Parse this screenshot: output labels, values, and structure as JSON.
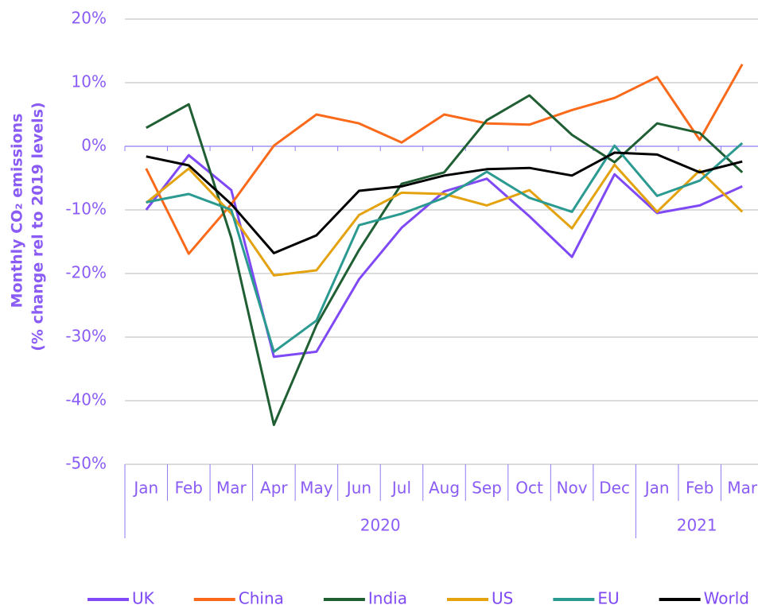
{
  "chart_data": {
    "type": "line",
    "y_label": [
      "Monthly CO₂ emissions",
      "(% change rel to 2019 levels)"
    ],
    "categories": [
      "Jan",
      "Feb",
      "Mar",
      "Apr",
      "May",
      "Jun",
      "Jul",
      "Aug",
      "Sep",
      "Oct",
      "Nov",
      "Dec",
      "Jan",
      "Feb",
      "Mar"
    ],
    "category_groups": [
      "2020",
      "2020",
      "2020",
      "2020",
      "2020",
      "2020",
      "2020",
      "2020",
      "2020",
      "2020",
      "2020",
      "2020",
      "2021",
      "2021",
      "2021"
    ],
    "ylim": [
      -50,
      20
    ],
    "yticks": [
      {
        "value": -50,
        "label": "-50%"
      },
      {
        "value": -40,
        "label": "-40%"
      },
      {
        "value": -30,
        "label": "-30%"
      },
      {
        "value": -20,
        "label": "-20%"
      },
      {
        "value": -10,
        "label": "-10%"
      },
      {
        "value": 0,
        "label": "0%"
      },
      {
        "value": 10,
        "label": "10%"
      },
      {
        "value": 20,
        "label": "20%"
      }
    ],
    "grid": true,
    "legend": "bottom",
    "series": [
      {
        "name": "UK",
        "color": "#7f49f5",
        "values": [
          -10,
          -1.4,
          -6.9,
          -33.1,
          -32.3,
          -20.9,
          -12.8,
          -7.1,
          -5.1,
          -11,
          -17.4,
          -4.4,
          -10.5,
          -9.3,
          -6.3
        ]
      },
      {
        "name": "China",
        "color": "#fa6a1a",
        "values": [
          -3.5,
          -16.9,
          -9.1,
          0.1,
          5,
          3.6,
          0.6,
          5,
          3.6,
          3.4,
          5.7,
          7.6,
          10.9,
          1,
          12.9
        ]
      },
      {
        "name": "India",
        "color": "#1f5f33",
        "values": [
          2.9,
          6.6,
          -14.4,
          -43.8,
          -28.1,
          -16.3,
          -5.9,
          -4.1,
          4.1,
          8,
          1.8,
          -2.5,
          3.6,
          2.1,
          -4.1
        ]
      },
      {
        "name": "US",
        "color": "#e3a20e",
        "values": [
          -8.9,
          -3.5,
          -10.6,
          -20.3,
          -19.5,
          -10.8,
          -7.3,
          -7.5,
          -9.3,
          -6.9,
          -12.9,
          -2.9,
          -10.3,
          -3.8,
          -10.3
        ]
      },
      {
        "name": "EU",
        "color": "#2b9a90",
        "values": [
          -8.8,
          -7.5,
          -10,
          -32.3,
          -27.4,
          -12.4,
          -10.6,
          -8.1,
          -4,
          -8.1,
          -10.3,
          0.1,
          -7.8,
          -5.4,
          0.5
        ]
      },
      {
        "name": "World",
        "color": "#000000",
        "values": [
          -1.6,
          -3,
          -9.1,
          -16.8,
          -14,
          -7,
          -6.3,
          -4.6,
          -3.6,
          -3.4,
          -4.6,
          -1,
          -1.3,
          -4.1,
          -2.4
        ]
      }
    ]
  }
}
